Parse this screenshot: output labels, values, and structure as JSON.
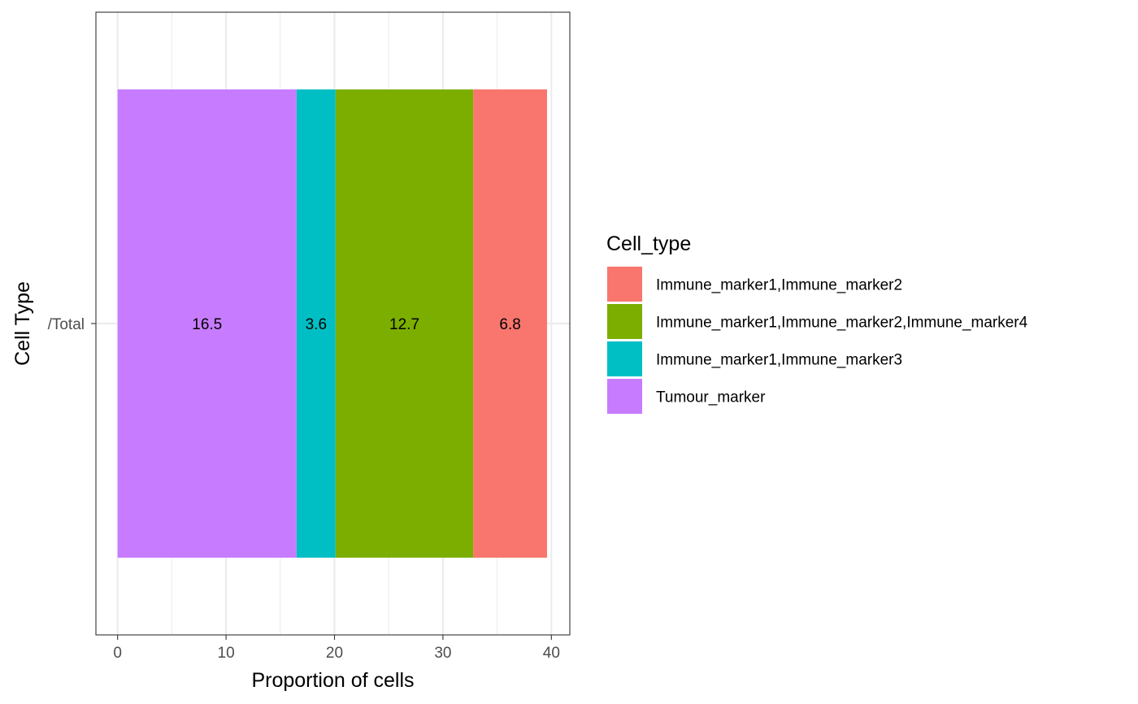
{
  "chart_data": {
    "type": "bar",
    "orientation": "horizontal",
    "stacked": true,
    "categories": [
      "/Total"
    ],
    "xlabel": "Proportion of cells",
    "ylabel": "Cell Type",
    "xlim": [
      -2,
      41.7
    ],
    "xticks": [
      0,
      10,
      20,
      30,
      40
    ],
    "grid": true,
    "legend_position": "right",
    "legend_title": "Cell_type",
    "series": [
      {
        "name": "Tumour_marker",
        "values": [
          16.5
        ],
        "label": "16.5",
        "color": "#C77CFF"
      },
      {
        "name": "Immune_marker1,Immune_marker3",
        "values": [
          3.6
        ],
        "label": "3.6",
        "color": "#00BFC4"
      },
      {
        "name": "Immune_marker1,Immune_marker2,Immune_marker4",
        "values": [
          12.7
        ],
        "label": "12.7",
        "color": "#7CAE00"
      },
      {
        "name": "Immune_marker1,Immune_marker2",
        "values": [
          6.8
        ],
        "label": "6.8",
        "color": "#F8766D"
      }
    ],
    "legend_order": [
      "Immune_marker1,Immune_marker2",
      "Immune_marker1,Immune_marker2,Immune_marker4",
      "Immune_marker1,Immune_marker3",
      "Tumour_marker"
    ]
  }
}
